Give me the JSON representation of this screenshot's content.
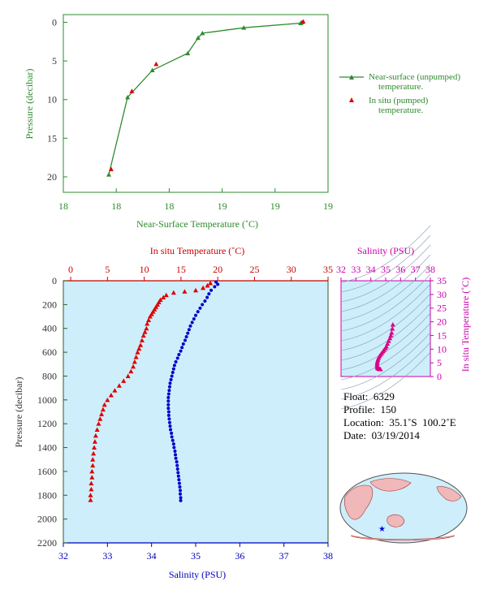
{
  "chart_data": [
    {
      "type": "line",
      "xlabel": "Near-Surface Temperature (˚C)",
      "ylabel": "Pressure (decibar)",
      "xticks": [
        "18",
        "18",
        "18",
        "19",
        "19",
        "19"
      ],
      "yticks": [
        "0",
        "5",
        "10",
        "15",
        "20"
      ],
      "xlim": [
        18.3,
        19.4
      ],
      "ylim": [
        22,
        -1
      ],
      "series": [
        {
          "name": "Near-surface (unpumped) temperature.",
          "marker": "triangle-line",
          "points": [
            [
              18.489,
              19.7
            ],
            [
              18.567,
              9.7
            ],
            [
              18.67,
              6.2
            ],
            [
              18.817,
              4.0
            ],
            [
              18.86,
              2.0
            ],
            [
              18.878,
              1.4
            ],
            [
              19.05,
              0.7
            ],
            [
              19.286,
              0.1
            ],
            [
              19.29,
              0.0
            ]
          ]
        },
        {
          "name": "In situ (pumped) temperature.",
          "marker": "triangle",
          "points": [
            [
              18.492,
              19.1
            ],
            [
              18.578,
              9.0
            ],
            [
              18.679,
              5.5
            ],
            [
              19.29,
              0.0
            ]
          ]
        }
      ],
      "legend": "right"
    },
    {
      "type": "scatter",
      "title_top": "In situ Temperature (˚C)",
      "xlabel_bottom": "Salinity (PSU)",
      "ylabel": "Pressure (decibar)",
      "temp_ticks": [
        "0",
        "5",
        "10",
        "15",
        "20",
        "25",
        "30",
        "35"
      ],
      "sal_ticks": [
        "32",
        "33",
        "34",
        "35",
        "36",
        "37",
        "38"
      ],
      "pres_ticks": [
        "0",
        "200",
        "400",
        "600",
        "800",
        "1000",
        "1200",
        "1400",
        "1600",
        "1800",
        "2000",
        "2200"
      ],
      "temp_lim": [
        -1,
        35
      ],
      "sal_lim": [
        32,
        38
      ],
      "pres_lim": [
        0,
        2200
      ],
      "temperature": [
        [
          19.0,
          20
        ],
        [
          18.6,
          40
        ],
        [
          18.0,
          60
        ],
        [
          17.0,
          80
        ],
        [
          15.5,
          90
        ],
        [
          14.0,
          100
        ],
        [
          13.0,
          120
        ],
        [
          12.6,
          140
        ],
        [
          12.2,
          160
        ],
        [
          12.0,
          180
        ],
        [
          11.8,
          200
        ],
        [
          11.6,
          220
        ],
        [
          11.4,
          240
        ],
        [
          11.2,
          260
        ],
        [
          11.0,
          280
        ],
        [
          10.8,
          300
        ],
        [
          10.6,
          330
        ],
        [
          10.4,
          360
        ],
        [
          10.3,
          400
        ],
        [
          10.1,
          430
        ],
        [
          9.9,
          460
        ],
        [
          9.7,
          500
        ],
        [
          9.5,
          540
        ],
        [
          9.3,
          570
        ],
        [
          9.1,
          600
        ],
        [
          8.9,
          640
        ],
        [
          8.7,
          680
        ],
        [
          8.5,
          720
        ],
        [
          8.2,
          760
        ],
        [
          7.8,
          800
        ],
        [
          7.2,
          840
        ],
        [
          6.6,
          880
        ],
        [
          6.0,
          920
        ],
        [
          5.5,
          960
        ],
        [
          5.0,
          1000
        ],
        [
          4.6,
          1040
        ],
        [
          4.4,
          1080
        ],
        [
          4.2,
          1120
        ],
        [
          4.0,
          1160
        ],
        [
          3.8,
          1200
        ],
        [
          3.6,
          1250
        ],
        [
          3.4,
          1300
        ],
        [
          3.3,
          1350
        ],
        [
          3.2,
          1400
        ],
        [
          3.1,
          1450
        ],
        [
          3.0,
          1500
        ],
        [
          3.0,
          1550
        ],
        [
          2.9,
          1600
        ],
        [
          2.9,
          1650
        ],
        [
          2.8,
          1700
        ],
        [
          2.8,
          1750
        ],
        [
          2.7,
          1800
        ],
        [
          2.7,
          1840
        ]
      ],
      "salinity": [
        [
          35.46,
          10
        ],
        [
          35.5,
          30
        ],
        [
          35.43,
          50
        ],
        [
          35.35,
          80
        ],
        [
          35.3,
          110
        ],
        [
          35.26,
          140
        ],
        [
          35.21,
          170
        ],
        [
          35.15,
          200
        ],
        [
          35.1,
          230
        ],
        [
          35.05,
          260
        ],
        [
          35.0,
          290
        ],
        [
          34.96,
          320
        ],
        [
          34.92,
          350
        ],
        [
          34.88,
          380
        ],
        [
          34.85,
          410
        ],
        [
          34.82,
          440
        ],
        [
          34.79,
          470
        ],
        [
          34.76,
          500
        ],
        [
          34.72,
          530
        ],
        [
          34.69,
          560
        ],
        [
          34.66,
          590
        ],
        [
          34.62,
          620
        ],
        [
          34.59,
          650
        ],
        [
          34.55,
          680
        ],
        [
          34.52,
          710
        ],
        [
          34.5,
          740
        ],
        [
          34.48,
          770
        ],
        [
          34.46,
          800
        ],
        [
          34.44,
          830
        ],
        [
          34.42,
          860
        ],
        [
          34.41,
          890
        ],
        [
          34.4,
          920
        ],
        [
          34.39,
          950
        ],
        [
          34.38,
          980
        ],
        [
          34.38,
          1010
        ],
        [
          34.38,
          1040
        ],
        [
          34.38,
          1070
        ],
        [
          34.39,
          1100
        ],
        [
          34.39,
          1130
        ],
        [
          34.4,
          1160
        ],
        [
          34.41,
          1190
        ],
        [
          34.42,
          1220
        ],
        [
          34.43,
          1250
        ],
        [
          34.45,
          1280
        ],
        [
          34.46,
          1310
        ],
        [
          34.48,
          1340
        ],
        [
          34.5,
          1370
        ],
        [
          34.51,
          1400
        ],
        [
          34.53,
          1430
        ],
        [
          34.54,
          1460
        ],
        [
          34.55,
          1490
        ],
        [
          34.57,
          1520
        ],
        [
          34.58,
          1550
        ],
        [
          34.59,
          1580
        ],
        [
          34.6,
          1610
        ],
        [
          34.61,
          1640
        ],
        [
          34.62,
          1670
        ],
        [
          34.63,
          1700
        ],
        [
          34.64,
          1730
        ],
        [
          34.65,
          1760
        ],
        [
          34.65,
          1790
        ],
        [
          34.66,
          1820
        ],
        [
          34.66,
          1845
        ]
      ]
    },
    {
      "type": "scatter",
      "title": "Salinity (PSU)",
      "ylabel": "In situ Temperature (˚C)",
      "sal_ticks": [
        "32",
        "33",
        "34",
        "35",
        "36",
        "37",
        "38"
      ],
      "temp_ticks": [
        "0",
        "5",
        "10",
        "15",
        "20",
        "25",
        "30",
        "35"
      ],
      "points": [
        [
          35.48,
          19
        ],
        [
          35.45,
          17.5
        ],
        [
          35.4,
          16
        ],
        [
          35.35,
          15
        ],
        [
          35.28,
          14
        ],
        [
          35.2,
          13
        ],
        [
          35.12,
          12
        ],
        [
          35.05,
          11
        ],
        [
          34.98,
          10.4
        ],
        [
          34.9,
          9.8
        ],
        [
          34.82,
          9.2
        ],
        [
          34.74,
          8.6
        ],
        [
          34.66,
          8
        ],
        [
          34.58,
          7.4
        ],
        [
          34.52,
          6.8
        ],
        [
          34.48,
          6.2
        ],
        [
          34.45,
          5.6
        ],
        [
          34.43,
          5
        ],
        [
          34.42,
          4.4
        ],
        [
          34.42,
          3.8
        ],
        [
          34.44,
          3.3
        ],
        [
          34.48,
          3
        ],
        [
          34.55,
          2.8
        ],
        [
          34.6,
          2.7
        ],
        [
          34.65,
          2.7
        ]
      ]
    }
  ],
  "colors": {
    "green": "#2e8b2e",
    "red": "#dd0000",
    "blue": "#0000cc",
    "magenta": "#dd0088",
    "plot_bg": "#cdeefa"
  },
  "legend": {
    "unpumped_line1": "Near-surface (unpumped)",
    "unpumped_line2": "temperature.",
    "pumped_line1": "In situ (pumped)",
    "pumped_line2": "temperature."
  },
  "info": {
    "float": "Float:  6329",
    "profile": "Profile:  150",
    "location": "Location:  35.1˚S  100.2˚E",
    "date": "Date:  03/19/2014"
  }
}
